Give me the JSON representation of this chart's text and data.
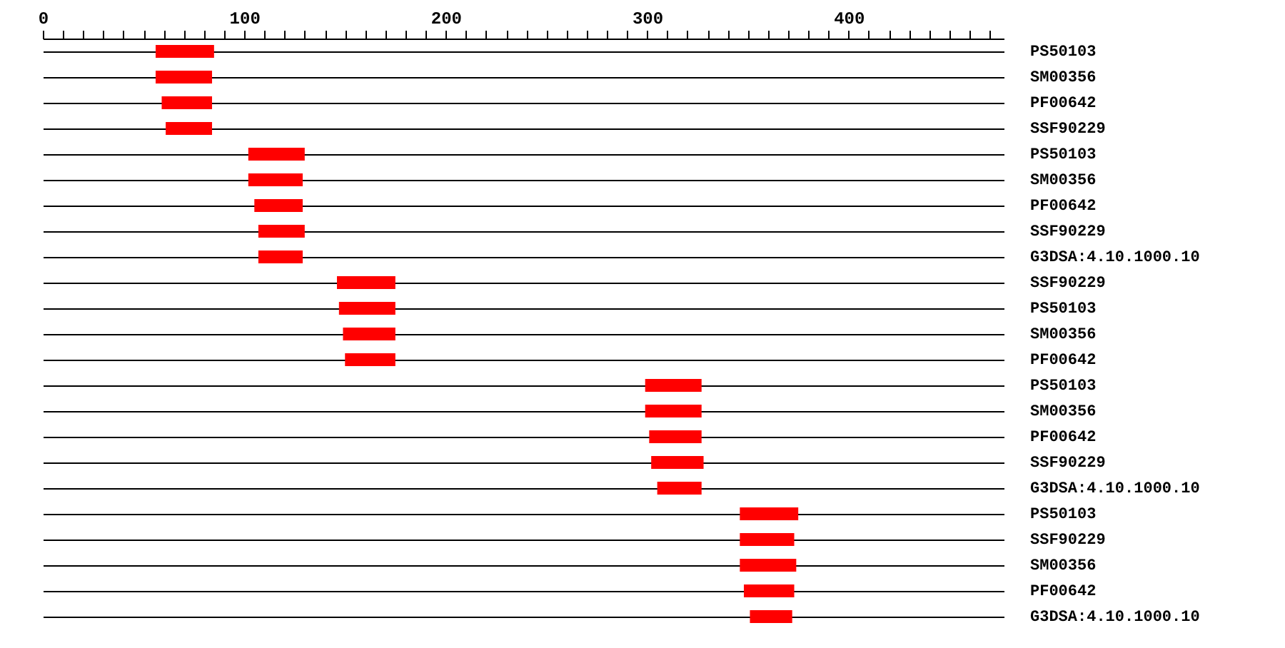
{
  "chart_data": {
    "type": "bar",
    "orientation": "horizontal",
    "color": "#ff0000",
    "grid": "y",
    "categories": [
      "PS50103",
      "SM00356",
      "PF00642",
      "SSF90229",
      "PS50103",
      "SM00356",
      "PF00642",
      "SSF90229",
      "G3DSA:4.10.1000.10",
      "SSF90229",
      "PS50103",
      "SM00356",
      "PF00642",
      "PS50103",
      "SM00356",
      "PF00642",
      "SSF90229",
      "G3DSA:4.10.1000.10",
      "PS50103",
      "SSF90229",
      "SM00356",
      "PF00642",
      "G3DSA:4.10.1000.10"
    ],
    "base": [
      56,
      56,
      59,
      61,
      102,
      102,
      105,
      107,
      107,
      146,
      147,
      149,
      150,
      299,
      299,
      301,
      302,
      305,
      346,
      346,
      346,
      348,
      351
    ],
    "values": [
      29,
      28,
      25,
      23,
      28,
      27,
      24,
      23,
      22,
      29,
      28,
      26,
      25,
      28,
      28,
      26,
      26,
      22,
      29,
      27,
      28,
      25,
      21
    ],
    "xlim": [
      0,
      477
    ],
    "xticks": [
      0,
      {
        "value": 10,
        "label": null
      },
      {
        "value": 20,
        "label": null
      },
      {
        "value": 30,
        "label": null
      },
      {
        "value": 40,
        "label": null
      },
      {
        "value": 50,
        "label": null
      },
      {
        "value": 60,
        "label": null
      },
      {
        "value": 70,
        "label": null
      },
      {
        "value": 80,
        "label": null
      },
      {
        "value": 90,
        "label": null
      },
      100,
      {
        "value": 110,
        "label": null
      },
      {
        "value": 120,
        "label": null
      },
      {
        "value": 130,
        "label": null
      },
      {
        "value": 140,
        "label": null
      },
      {
        "value": 150,
        "label": null
      },
      {
        "value": 160,
        "label": null
      },
      {
        "value": 170,
        "label": null
      },
      {
        "value": 180,
        "label": null
      },
      {
        "value": 190,
        "label": null
      },
      200,
      {
        "value": 210,
        "label": null
      },
      {
        "value": 220,
        "label": null
      },
      {
        "value": 230,
        "label": null
      },
      {
        "value": 240,
        "label": null
      },
      {
        "value": 250,
        "label": null
      },
      {
        "value": 260,
        "label": null
      },
      {
        "value": 270,
        "label": null
      },
      {
        "value": 280,
        "label": null
      },
      {
        "value": 290,
        "label": null
      },
      300,
      {
        "value": 310,
        "label": null
      },
      {
        "value": 320,
        "label": null
      },
      {
        "value": 330,
        "label": null
      },
      {
        "value": 340,
        "label": null
      },
      {
        "value": 350,
        "label": null
      },
      {
        "value": 360,
        "label": null
      },
      {
        "value": 370,
        "label": null
      },
      {
        "value": 380,
        "label": null
      },
      {
        "value": 390,
        "label": null
      },
      400,
      {
        "value": 410,
        "label": null
      },
      {
        "value": 420,
        "label": null
      },
      {
        "value": 430,
        "label": null
      },
      {
        "value": 440,
        "label": null
      },
      {
        "value": 450,
        "label": null
      },
      {
        "value": 460,
        "label": null
      },
      {
        "value": 470,
        "label": null
      }
    ]
  }
}
